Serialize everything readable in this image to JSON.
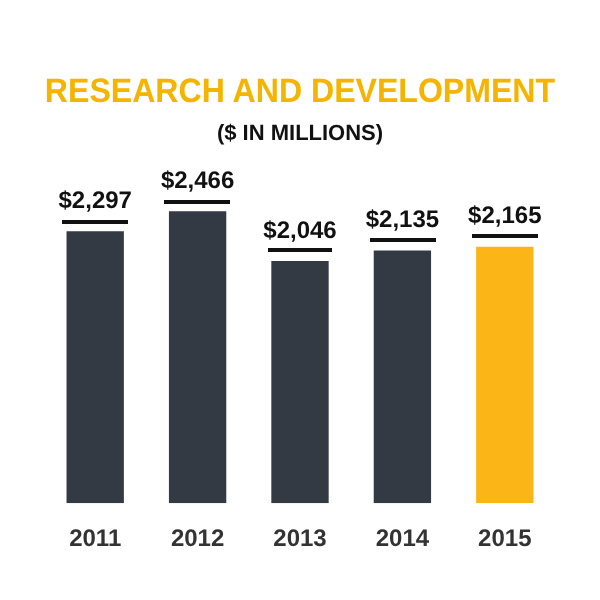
{
  "chart_data": {
    "type": "bar",
    "title": "RESEARCH AND DEVELOPMENT",
    "subtitle": "($ IN MILLIONS)",
    "categories": [
      "2011",
      "2012",
      "2013",
      "2014",
      "2015"
    ],
    "values": [
      2297,
      2466,
      2046,
      2135,
      2165
    ],
    "colors": [
      "#333a44",
      "#333a44",
      "#333a44",
      "#333a44",
      "#fbb516"
    ],
    "value_labels": [
      "$2,297",
      "$2,466",
      "$2,046",
      "$2,135",
      "$2,165"
    ],
    "grid": false,
    "legend": false
  }
}
